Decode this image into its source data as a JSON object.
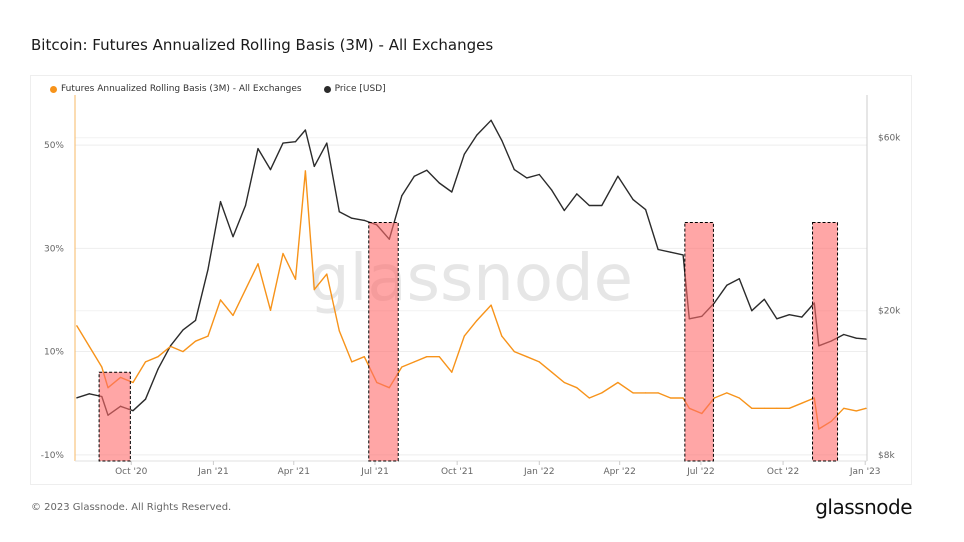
{
  "title": "Bitcoin: Futures Annualized Rolling Basis (3M) - All Exchanges",
  "footer": "© 2023 Glassnode. All Rights Reserved.",
  "logo": "glassnode",
  "watermark": "glassnode",
  "colors": {
    "basis": "#f7931a",
    "price": "#2b2b2b",
    "highlight_fill": "#ff6b6b",
    "highlight_border": "#000000"
  },
  "chart_data": {
    "type": "line",
    "title": "Bitcoin: Futures Annualized Rolling Basis (3M) - All Exchanges",
    "legend_placement": "top-left",
    "grid": true,
    "x_range": [
      "2020-07-30",
      "2023-01-03"
    ],
    "x_ticks": [
      {
        "date": "2020-10-01",
        "label": "Oct '20"
      },
      {
        "date": "2021-01-01",
        "label": "Jan '21"
      },
      {
        "date": "2021-04-01",
        "label": "Apr '21"
      },
      {
        "date": "2021-07-01",
        "label": "Jul '21"
      },
      {
        "date": "2021-10-01",
        "label": "Oct '21"
      },
      {
        "date": "2022-01-01",
        "label": "Jan '22"
      },
      {
        "date": "2022-04-01",
        "label": "Apr '22"
      },
      {
        "date": "2022-07-01",
        "label": "Jul '22"
      },
      {
        "date": "2022-10-01",
        "label": "Oct '22"
      },
      {
        "date": "2023-01-01",
        "label": "Jan '23"
      }
    ],
    "y_left": {
      "scale": "linear",
      "range": [
        -11.2,
        59.7
      ],
      "ticks": [
        {
          "v": -10,
          "label": "-10%"
        },
        {
          "v": 10,
          "label": "10%"
        },
        {
          "v": 30,
          "label": "30%"
        },
        {
          "v": 50,
          "label": "50%"
        }
      ]
    },
    "y_right": {
      "scale": "log",
      "range": [
        7700,
        78700
      ],
      "ticks": [
        {
          "v": 8000,
          "label": "$8k"
        },
        {
          "v": 20000,
          "label": "$20k"
        },
        {
          "v": 60000,
          "label": "$60k"
        }
      ]
    },
    "highlights": [
      {
        "start": "2020-08-26",
        "end": "2020-09-30",
        "top": 6
      },
      {
        "start": "2021-06-24",
        "end": "2021-07-27",
        "top": 35
      },
      {
        "start": "2022-06-13",
        "end": "2022-07-15",
        "top": 35
      },
      {
        "start": "2022-11-03",
        "end": "2022-12-01",
        "top": 35
      }
    ],
    "x": [
      "2020-08-01",
      "2020-08-15",
      "2020-08-29",
      "2020-09-05",
      "2020-09-19",
      "2020-10-03",
      "2020-10-17",
      "2020-10-31",
      "2020-11-14",
      "2020-11-28",
      "2020-12-12",
      "2020-12-26",
      "2021-01-09",
      "2021-01-23",
      "2021-02-06",
      "2021-02-20",
      "2021-03-06",
      "2021-03-20",
      "2021-04-03",
      "2021-04-14",
      "2021-04-24",
      "2021-05-08",
      "2021-05-22",
      "2021-06-05",
      "2021-06-19",
      "2021-07-03",
      "2021-07-17",
      "2021-07-31",
      "2021-08-14",
      "2021-08-28",
      "2021-09-11",
      "2021-09-25",
      "2021-10-09",
      "2021-10-23",
      "2021-11-08",
      "2021-11-20",
      "2021-12-04",
      "2021-12-18",
      "2022-01-01",
      "2022-01-15",
      "2022-01-29",
      "2022-02-12",
      "2022-02-26",
      "2022-03-12",
      "2022-03-30",
      "2022-04-16",
      "2022-04-30",
      "2022-05-14",
      "2022-05-28",
      "2022-06-11",
      "2022-06-18",
      "2022-07-02",
      "2022-07-16",
      "2022-07-30",
      "2022-08-13",
      "2022-08-27",
      "2022-09-10",
      "2022-09-24",
      "2022-10-08",
      "2022-10-22",
      "2022-11-05",
      "2022-11-10",
      "2022-11-24",
      "2022-12-08",
      "2022-12-22",
      "2023-01-02"
    ],
    "series": [
      {
        "name": "Futures Annualized Rolling Basis (3M) - All Exchanges",
        "axis": "left",
        "unit": "%",
        "values": [
          15,
          11,
          7,
          3,
          5,
          4,
          8,
          9,
          11,
          10,
          12,
          13,
          20,
          17,
          22,
          27,
          18,
          29,
          24,
          45,
          22,
          25,
          14,
          8,
          9,
          4,
          3,
          7,
          8,
          9,
          9,
          6,
          13,
          16,
          19,
          13,
          10,
          9,
          8,
          6,
          4,
          3,
          1,
          2,
          4,
          2,
          2,
          2,
          1,
          1,
          -1,
          -2,
          1,
          2,
          1,
          -1,
          -1,
          -1,
          -1,
          0,
          1,
          -5,
          -3.5,
          -1,
          -1.5,
          -1
        ]
      },
      {
        "name": "Price [USD]",
        "axis": "right",
        "unit": "USD",
        "values": [
          11500,
          11800,
          11600,
          10300,
          10900,
          10600,
          11400,
          13800,
          16000,
          17700,
          18800,
          26000,
          40000,
          32000,
          39000,
          56000,
          49000,
          58000,
          58500,
          63000,
          50000,
          58000,
          37500,
          36000,
          35500,
          34500,
          31500,
          41500,
          47000,
          48800,
          45000,
          42500,
          54000,
          61000,
          67000,
          59000,
          49000,
          46500,
          47500,
          43000,
          37800,
          42000,
          39000,
          39000,
          47000,
          40500,
          38000,
          29500,
          29000,
          28500,
          19000,
          19300,
          21000,
          23500,
          24500,
          20000,
          21500,
          19000,
          19500,
          19200,
          21000,
          16000,
          16500,
          17200,
          16800,
          16700
        ]
      }
    ]
  }
}
